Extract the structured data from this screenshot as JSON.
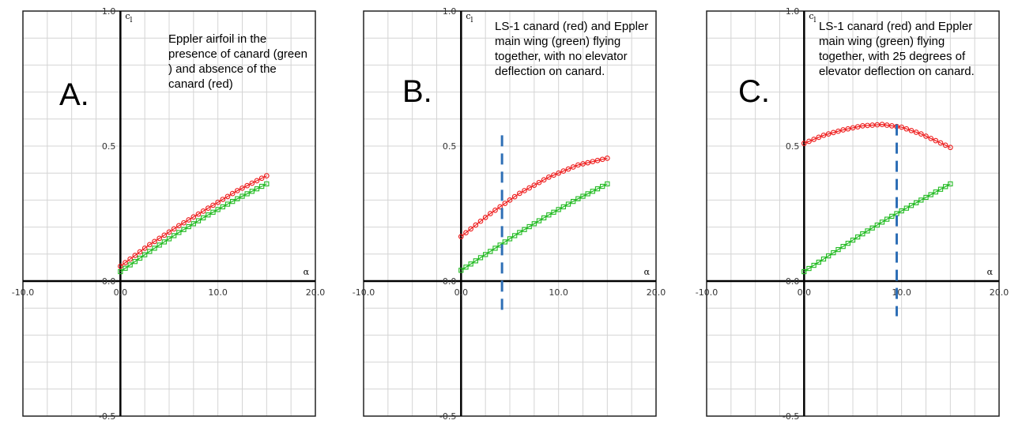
{
  "chart_data": [
    {
      "type": "line",
      "panel_label": "A.",
      "annotation": "Eppler airfoil in the presence  of canard (green ) and absence of the canard (red)",
      "xlabel": "α",
      "ylabel": "cl",
      "xlim": [
        -10,
        20
      ],
      "ylim": [
        -0.5,
        1.0
      ],
      "xticks": [
        "-10.0",
        "0.0",
        "10.0",
        "20.0"
      ],
      "yticks": [
        "-0.5",
        "0.0",
        "0.5",
        "1.0"
      ],
      "grid": true,
      "series": [
        {
          "color": "#ee1c1c",
          "marker": "circle",
          "x": [
            0,
            3,
            6,
            9,
            12,
            15
          ],
          "y": [
            0.055,
            0.135,
            0.205,
            0.27,
            0.335,
            0.39
          ]
        },
        {
          "color": "#22bb22",
          "marker": "square",
          "x": [
            0,
            3,
            6,
            9,
            12,
            15
          ],
          "y": [
            0.035,
            0.11,
            0.18,
            0.245,
            0.305,
            0.36
          ]
        }
      ],
      "vline": null
    },
    {
      "type": "line",
      "panel_label": "B.",
      "annotation": "LS-1 canard (red) and Eppler main wing (green) flying together, with no elevator deflection on canard.",
      "xlabel": "α",
      "ylabel": "cl",
      "xlim": [
        -10,
        20
      ],
      "ylim": [
        -0.5,
        1.0
      ],
      "xticks": [
        "-10.0",
        "0.0",
        "10.0",
        "20.0"
      ],
      "yticks": [
        "-0.5",
        "0.0",
        "0.5",
        "1.0"
      ],
      "grid": true,
      "series": [
        {
          "color": "#ee1c1c",
          "marker": "circle",
          "x": [
            0,
            3,
            6,
            9,
            12,
            15
          ],
          "y": [
            0.165,
            0.25,
            0.325,
            0.385,
            0.43,
            0.455
          ]
        },
        {
          "color": "#22bb22",
          "marker": "square",
          "x": [
            0,
            3,
            6,
            9,
            12,
            15
          ],
          "y": [
            0.04,
            0.11,
            0.18,
            0.245,
            0.305,
            0.36
          ]
        }
      ],
      "vline": {
        "x": 4.2,
        "y_from": -0.13,
        "y_to": 0.54,
        "color": "#2e6fb6"
      }
    },
    {
      "type": "line",
      "panel_label": "C.",
      "annotation": "LS-1 canard (red) and Eppler main wing (green) flying  together, with 25 degrees of elevator deflection on canard.",
      "xlabel": "α",
      "ylabel": "cl",
      "xlim": [
        -10,
        20
      ],
      "ylim": [
        -0.5,
        1.0
      ],
      "xticks": [
        "-10.0",
        "0.0",
        "10.0",
        "20.0"
      ],
      "yticks": [
        "-0.5",
        "0.0",
        "0.5",
        "1.0"
      ],
      "grid": true,
      "series": [
        {
          "color": "#ee1c1c",
          "marker": "circle",
          "x": [
            0,
            2,
            4,
            6,
            8,
            10,
            12,
            15
          ],
          "y": [
            0.51,
            0.54,
            0.56,
            0.575,
            0.58,
            0.57,
            0.545,
            0.495
          ]
        },
        {
          "color": "#22bb22",
          "marker": "square",
          "x": [
            0,
            3,
            6,
            9,
            12,
            15
          ],
          "y": [
            0.035,
            0.105,
            0.175,
            0.24,
            0.3,
            0.36
          ]
        }
      ],
      "vline": {
        "x": 9.5,
        "y_from": -0.13,
        "y_to": 0.58,
        "color": "#2e6fb6"
      }
    }
  ]
}
